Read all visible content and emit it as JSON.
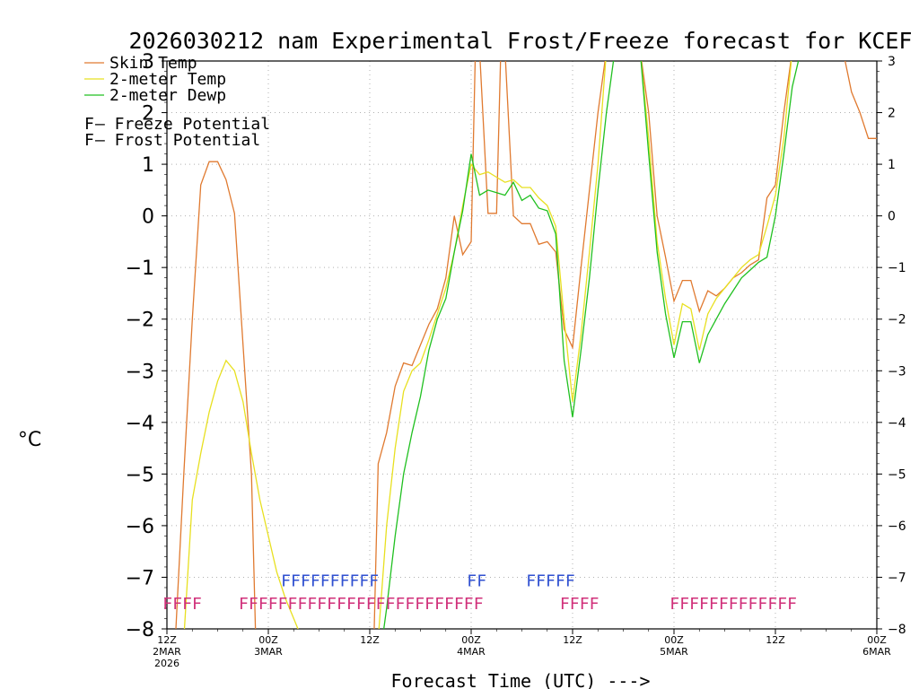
{
  "chart_data": {
    "type": "line",
    "title": "2026030212 nam Experimental Frost/Freeze forecast for KCEF",
    "ylabel": "°C",
    "xlabel": "Forecast Time (UTC) --->",
    "ylim": [
      -8,
      3
    ],
    "yticks": [
      -8,
      -7,
      -6,
      -5,
      -4,
      -3,
      -2,
      -1,
      0,
      1,
      2,
      3
    ],
    "ytick_labels": [
      "−8",
      "−7",
      "−6",
      "−5",
      "−4",
      "−3",
      "−2",
      "−1",
      "0",
      "1",
      "2",
      "3"
    ],
    "xlim": [
      0,
      84
    ],
    "x_unit": "forecast hour",
    "xticks": [
      {
        "x": 0,
        "label": "12Z",
        "sub": "2MAR",
        "sub2": "2026"
      },
      {
        "x": 12,
        "label": "00Z",
        "sub": "3MAR",
        "sub2": ""
      },
      {
        "x": 24,
        "label": "12Z",
        "sub": "",
        "sub2": ""
      },
      {
        "x": 36,
        "label": "00Z",
        "sub": "4MAR",
        "sub2": ""
      },
      {
        "x": 48,
        "label": "12Z",
        "sub": "",
        "sub2": ""
      },
      {
        "x": 60,
        "label": "00Z",
        "sub": "5MAR",
        "sub2": ""
      },
      {
        "x": 72,
        "label": "12Z",
        "sub": "",
        "sub2": ""
      },
      {
        "x": 84,
        "label": "00Z",
        "sub": "6MAR",
        "sub2": ""
      }
    ],
    "grid": true,
    "series": [
      {
        "name": "Skin Temp",
        "color": "#e07a30",
        "points": [
          [
            1,
            -8.2
          ],
          [
            2,
            -5.0
          ],
          [
            3,
            -2.0
          ],
          [
            4,
            0.6
          ],
          [
            5,
            1.05
          ],
          [
            6,
            1.05
          ],
          [
            7,
            0.7
          ],
          [
            8,
            0.05
          ],
          [
            9,
            -2.5
          ],
          [
            10,
            -5.0
          ],
          [
            10.5,
            -8.2
          ],
          [
            24.5,
            -8.2
          ],
          [
            25,
            -4.8
          ],
          [
            26,
            -4.2
          ],
          [
            27,
            -3.3
          ],
          [
            28,
            -2.85
          ],
          [
            29,
            -2.9
          ],
          [
            30,
            -2.5
          ],
          [
            31,
            -2.1
          ],
          [
            32,
            -1.8
          ],
          [
            33,
            -1.2
          ],
          [
            34,
            0.0
          ],
          [
            35,
            -0.75
          ],
          [
            36,
            -0.5
          ],
          [
            36.5,
            3.2
          ],
          [
            37,
            3.2
          ],
          [
            38,
            0.05
          ],
          [
            39,
            0.05
          ],
          [
            39.5,
            3.2
          ],
          [
            40,
            3.2
          ],
          [
            41,
            0.0
          ],
          [
            42,
            -0.15
          ],
          [
            43,
            -0.15
          ],
          [
            44,
            -0.55
          ],
          [
            45,
            -0.5
          ],
          [
            46,
            -0.7
          ],
          [
            47,
            -2.2
          ],
          [
            48,
            -2.55
          ],
          [
            49,
            -1.0
          ],
          [
            50,
            0.5
          ],
          [
            51,
            2.0
          ],
          [
            52,
            3.2
          ],
          [
            56,
            3.2
          ],
          [
            57,
            2.0
          ],
          [
            58,
            0.0
          ],
          [
            59,
            -0.8
          ],
          [
            60,
            -1.65
          ],
          [
            61,
            -1.25
          ],
          [
            62,
            -1.25
          ],
          [
            63,
            -1.85
          ],
          [
            64,
            -1.45
          ],
          [
            65,
            -1.55
          ],
          [
            66,
            -1.4
          ],
          [
            67,
            -1.2
          ],
          [
            68,
            -1.1
          ],
          [
            69,
            -0.95
          ],
          [
            70,
            -0.85
          ],
          [
            71,
            0.35
          ],
          [
            72,
            0.6
          ],
          [
            73,
            2.0
          ],
          [
            74,
            3.2
          ],
          [
            80,
            3.2
          ],
          [
            81,
            2.4
          ],
          [
            82,
            2.0
          ],
          [
            83,
            1.5
          ],
          [
            84,
            1.5
          ],
          [
            84.6,
            1.4
          ]
        ]
      },
      {
        "name": "2-meter Temp",
        "color": "#e8e020",
        "points": [
          [
            2,
            -8.2
          ],
          [
            3,
            -5.5
          ],
          [
            4,
            -4.6
          ],
          [
            5,
            -3.8
          ],
          [
            6,
            -3.2
          ],
          [
            7,
            -2.8
          ],
          [
            8,
            -3.0
          ],
          [
            9,
            -3.6
          ],
          [
            10,
            -4.6
          ],
          [
            11,
            -5.5
          ],
          [
            12,
            -6.2
          ],
          [
            13,
            -6.9
          ],
          [
            14,
            -7.4
          ],
          [
            15,
            -7.8
          ],
          [
            16,
            -8.2
          ],
          [
            25,
            -8.2
          ],
          [
            26,
            -6.0
          ],
          [
            27,
            -4.5
          ],
          [
            28,
            -3.4
          ],
          [
            29,
            -3.0
          ],
          [
            30,
            -2.85
          ],
          [
            31,
            -2.4
          ],
          [
            32,
            -1.9
          ],
          [
            33,
            -1.4
          ],
          [
            34,
            -0.7
          ],
          [
            35,
            0.2
          ],
          [
            36,
            1.0
          ],
          [
            37,
            0.8
          ],
          [
            38,
            0.85
          ],
          [
            39,
            0.75
          ],
          [
            40,
            0.65
          ],
          [
            41,
            0.7
          ],
          [
            42,
            0.55
          ],
          [
            43,
            0.55
          ],
          [
            44,
            0.35
          ],
          [
            45,
            0.2
          ],
          [
            46,
            -0.2
          ],
          [
            47,
            -2.0
          ],
          [
            48,
            -3.6
          ],
          [
            49,
            -2.3
          ],
          [
            50,
            -0.7
          ],
          [
            51,
            1.0
          ],
          [
            52,
            3.2
          ],
          [
            56,
            3.2
          ],
          [
            57,
            1.5
          ],
          [
            58,
            -0.5
          ],
          [
            59,
            -1.6
          ],
          [
            60,
            -2.5
          ],
          [
            61,
            -1.7
          ],
          [
            62,
            -1.8
          ],
          [
            63,
            -2.6
          ],
          [
            64,
            -1.9
          ],
          [
            65,
            -1.6
          ],
          [
            66,
            -1.4
          ],
          [
            67,
            -1.2
          ],
          [
            68,
            -1.0
          ],
          [
            69,
            -0.85
          ],
          [
            70,
            -0.75
          ],
          [
            71,
            -0.2
          ],
          [
            72,
            0.4
          ],
          [
            73,
            1.5
          ],
          [
            74,
            3.2
          ]
        ]
      },
      {
        "name": "2-meter Dewp",
        "color": "#20c020",
        "points": [
          [
            25.5,
            -8.2
          ],
          [
            26,
            -7.6
          ],
          [
            27,
            -6.2
          ],
          [
            28,
            -5.0
          ],
          [
            29,
            -4.2
          ],
          [
            30,
            -3.5
          ],
          [
            31,
            -2.6
          ],
          [
            32,
            -2.0
          ],
          [
            33,
            -1.6
          ],
          [
            34,
            -0.7
          ],
          [
            35,
            0.1
          ],
          [
            36,
            1.2
          ],
          [
            37,
            0.4
          ],
          [
            38,
            0.5
          ],
          [
            39,
            0.45
          ],
          [
            40,
            0.4
          ],
          [
            41,
            0.65
          ],
          [
            42,
            0.3
          ],
          [
            43,
            0.4
          ],
          [
            44,
            0.15
          ],
          [
            45,
            0.1
          ],
          [
            46,
            -0.35
          ],
          [
            47,
            -2.8
          ],
          [
            48,
            -3.9
          ],
          [
            49,
            -2.6
          ],
          [
            50,
            -1.2
          ],
          [
            51,
            0.5
          ],
          [
            52,
            2.0
          ],
          [
            53,
            3.2
          ],
          [
            56,
            3.2
          ],
          [
            57,
            1.2
          ],
          [
            58,
            -0.7
          ],
          [
            59,
            -1.9
          ],
          [
            60,
            -2.75
          ],
          [
            61,
            -2.05
          ],
          [
            62,
            -2.05
          ],
          [
            63,
            -2.85
          ],
          [
            64,
            -2.3
          ],
          [
            65,
            -2.0
          ],
          [
            66,
            -1.7
          ],
          [
            67,
            -1.45
          ],
          [
            68,
            -1.2
          ],
          [
            69,
            -1.05
          ],
          [
            70,
            -0.9
          ],
          [
            71,
            -0.8
          ],
          [
            72,
            0.0
          ],
          [
            73,
            1.2
          ],
          [
            74,
            2.5
          ],
          [
            75,
            3.2
          ]
        ]
      }
    ],
    "flags": [
      {
        "type": "Freeze",
        "color": "#d0307a",
        "y": -7.5,
        "text": "FFFF",
        "x_start": -0.5
      },
      {
        "type": "Freeze",
        "color": "#d0307a",
        "y": -7.5,
        "text": "FFFFFFFFFFFFFFFFFFFFFFFFF",
        "x_start": 8.5
      },
      {
        "type": "Freeze",
        "color": "#d0307a",
        "y": -7.5,
        "text": "FFFF",
        "x_start": 46.5
      },
      {
        "type": "Freeze",
        "color": "#d0307a",
        "y": -7.5,
        "text": "FFFFFFFFFFFFF",
        "x_start": 59.5
      },
      {
        "type": "Frost",
        "color": "#3050d0",
        "y": -7.05,
        "text": "FFFFFFFFFF",
        "x_start": 13.5
      },
      {
        "type": "Frost",
        "color": "#3050d0",
        "y": -7.05,
        "text": "FF",
        "x_start": 35.5
      },
      {
        "type": "Frost",
        "color": "#3050d0",
        "y": -7.05,
        "text": "FFFFF",
        "x_start": 42.5
      }
    ],
    "legend": [
      {
        "label": "Skin Temp",
        "color": "#e07a30",
        "kind": "line"
      },
      {
        "label": "2-meter Temp",
        "color": "#e8e020",
        "kind": "line"
      },
      {
        "label": "2-meter Dewp",
        "color": "#20c020",
        "kind": "line"
      },
      {
        "label": "F  – Freeze Potential",
        "color": "#d0307a",
        "kind": "flag",
        "flag": "F",
        "text": " – Freeze Potential"
      },
      {
        "label": "F  – Frost Potential",
        "color": "#3050d0",
        "kind": "flag",
        "flag": "F",
        "text": " – Frost Potential"
      }
    ],
    "legend_position": "top-left"
  }
}
